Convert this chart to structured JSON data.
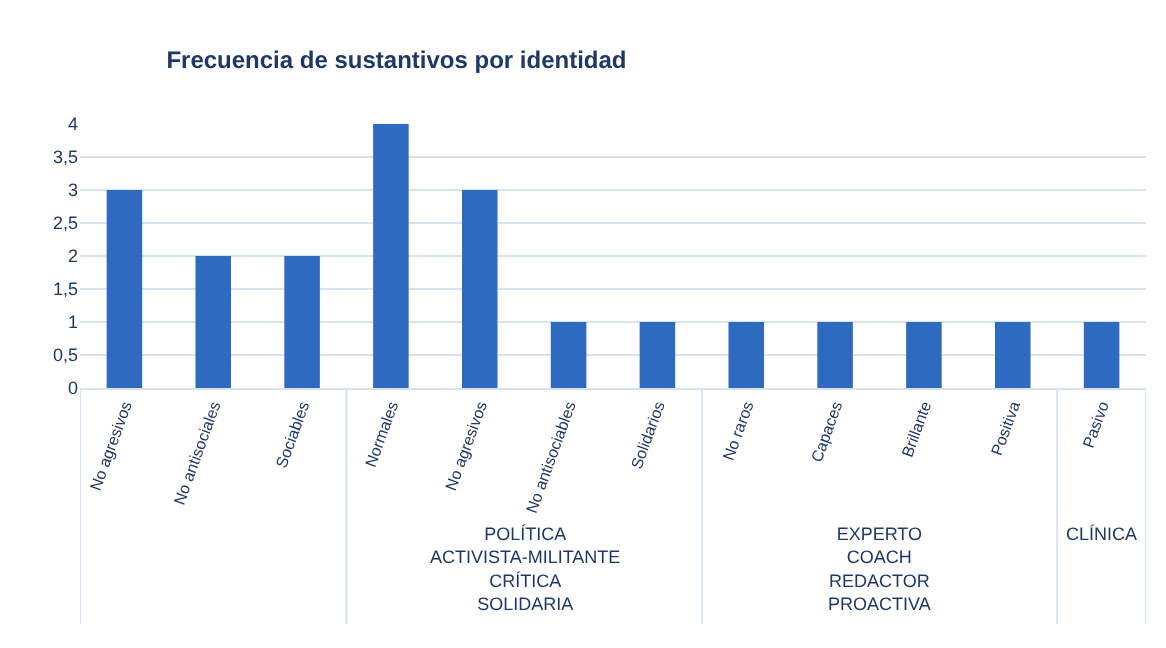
{
  "chart_data": {
    "type": "bar",
    "title": "Frecuencia de sustantivos por identidad",
    "categories": [
      "No agresivos",
      "No antisociales",
      "Sociables",
      "Normales",
      "No agresivos",
      "No antisociables",
      "Solidarios",
      "No raros",
      "Capaces",
      "Brillante",
      "Positiva",
      "Pasivo"
    ],
    "values": [
      3,
      2,
      2,
      4,
      3,
      1,
      1,
      1,
      1,
      1,
      1,
      1
    ],
    "color": "#2e6bbf",
    "ylim": [
      0,
      4
    ],
    "yticks": [
      0,
      {
        "value": 0.5,
        "label": "0,5"
      },
      1,
      {
        "value": 1.5,
        "label": "1,5"
      },
      2,
      {
        "value": 2.5,
        "label": "2,5"
      },
      3,
      {
        "value": 3.5,
        "label": "3,5"
      },
      4
    ],
    "grid": "y",
    "legend": false,
    "annotations": [
      "POLÍTICA\nACTIVISTA-MILITANTE\nCRÍTICA\nSOLIDARIA",
      "EXPERTO\nCOACH\nREDACTOR\nPROACTIVA",
      "CLÍNICA"
    ]
  }
}
